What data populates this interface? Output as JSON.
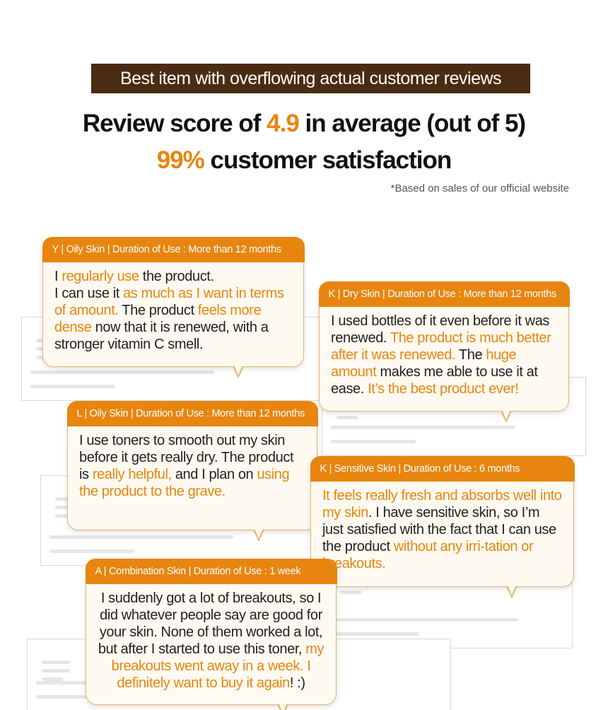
{
  "banner": "Best item with overflowing actual customer reviews",
  "headline1": {
    "pre": "Review score of ",
    "score": "4.9",
    "post": " in average (out of 5)"
  },
  "headline2": {
    "pct": "99%",
    "post": " customer satisfaction"
  },
  "note": "*Based on sales of our official website",
  "colors": {
    "accent": "#e8850f",
    "banner_bg": "#4a2c12",
    "bubble_bg": "#fffaf1",
    "bubble_border": "#e8b36c"
  },
  "reviews": [
    {
      "header": "Y | Oily Skin | Duration of Use : More than 12 months",
      "segments": [
        [
          "I ",
          0
        ],
        [
          "regularly use",
          1
        ],
        [
          " the product.\nI can use it ",
          0
        ],
        [
          "as much as I want in terms of amount.",
          1
        ],
        [
          " The product ",
          0
        ],
        [
          "feels more dense",
          1
        ],
        [
          " now that it is renewed, with a stronger vitamin C smell.",
          0
        ]
      ]
    },
    {
      "header": "K | Dry Skin | Duration of Use : More than 12 months",
      "segments": [
        [
          "I used bottles of it even before it was renewed. ",
          0
        ],
        [
          "The product is much better after it was renewed.",
          1
        ],
        [
          " The ",
          0
        ],
        [
          "huge amount",
          1
        ],
        [
          " makes me able to use it at ease. ",
          0
        ],
        [
          "It’s the best product ever!",
          1
        ]
      ]
    },
    {
      "header": "L | Oily Skin  | Duration of Use : More than 12 months",
      "segments": [
        [
          "I use toners to smooth out my skin before it gets really dry. The product is ",
          0
        ],
        [
          "really helpful,",
          1
        ],
        [
          " and I plan on ",
          0
        ],
        [
          "using the product to the grave.",
          1
        ]
      ]
    },
    {
      "header": "K | Sensitive Skin | Duration of Use : 6 months",
      "segments": [
        [
          "It feels really fresh and absorbs well into my skin",
          1
        ],
        [
          ". I have sensitive skin, so I’m just satisfied with the fact that I can use the product ",
          0
        ],
        [
          "without any irri-tation or breakouts.",
          1
        ]
      ]
    },
    {
      "header": "A | Combination Skin | Duration of Use : 1 week",
      "segments": [
        [
          "I suddenly got a lot of breakouts, so I did whatever people say are good for your skin. None of them worked a lot, but after I started to use this toner, ",
          0
        ],
        [
          "my breakouts went away in a week. I definitely want to buy it again",
          1
        ],
        [
          "! :)",
          0
        ]
      ]
    }
  ]
}
